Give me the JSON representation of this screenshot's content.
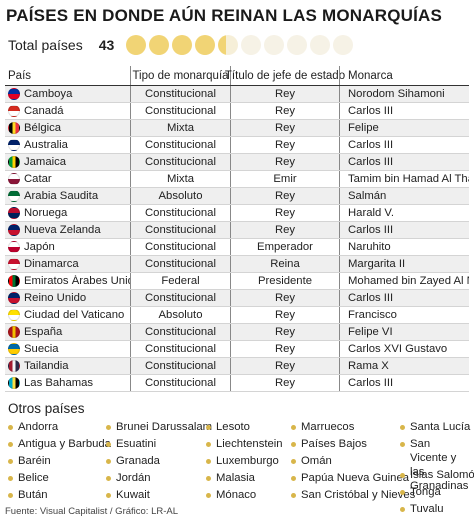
{
  "title": "PAÍSES EN DONDE AÚN REINAN LAS MONARQUÍAS",
  "total": {
    "label": "Total países",
    "value": "43",
    "coins_full": 4,
    "coins_partial": 1,
    "coins_faint": 5
  },
  "table": {
    "headers": {
      "country": "País",
      "type": "Tipo de monarquía",
      "head_title": "Título de jefe de estado",
      "monarch": "Monarca"
    },
    "rows": [
      {
        "country": "Camboya",
        "type": "Constitucional",
        "head_title": "Rey",
        "monarch": "Norodom Sihamoni",
        "flag": [
          "#032ea1",
          "#e00025"
        ]
      },
      {
        "country": "Canadá",
        "type": "Constitucional",
        "head_title": "Rey",
        "monarch": "Carlos III",
        "flag": [
          "#d52b1e",
          "#ffffff"
        ]
      },
      {
        "country": "Bélgica",
        "type": "Mixta",
        "head_title": "Rey",
        "monarch": "Felipe",
        "flag": [
          "#000000",
          "#fdda24",
          "#ef3340"
        ]
      },
      {
        "country": "Australia",
        "type": "Constitucional",
        "head_title": "Rey",
        "monarch": "Carlos III",
        "flag": [
          "#012169",
          "#ffffff"
        ]
      },
      {
        "country": "Jamaica",
        "type": "Constitucional",
        "head_title": "Rey",
        "monarch": "Carlos III",
        "flag": [
          "#009b3a",
          "#fed100",
          "#000000"
        ]
      },
      {
        "country": "Catar",
        "type": "Mixta",
        "head_title": "Emir",
        "monarch": "Tamim bin Hamad Al Thani",
        "flag": [
          "#ffffff",
          "#8a1538"
        ]
      },
      {
        "country": "Arabia Saudita",
        "type": "Absoluto",
        "head_title": "Rey",
        "monarch": "Salmán",
        "flag": [
          "#006c35",
          "#ffffff"
        ]
      },
      {
        "country": "Noruega",
        "type": "Constitucional",
        "head_title": "Rey",
        "monarch": "Harald V.",
        "flag": [
          "#ba0c2f",
          "#00205b"
        ]
      },
      {
        "country": "Nueva Zelanda",
        "type": "Constitucional",
        "head_title": "Rey",
        "monarch": "Carlos III",
        "flag": [
          "#012169",
          "#c8102e"
        ]
      },
      {
        "country": "Japón",
        "type": "Constitucional",
        "head_title": "Emperador",
        "monarch": "Naruhito",
        "flag": [
          "#ffffff",
          "#bc002d"
        ]
      },
      {
        "country": "Dinamarca",
        "type": "Constitucional",
        "head_title": "Reina",
        "monarch": "Margarita II",
        "flag": [
          "#c8102e",
          "#ffffff"
        ]
      },
      {
        "country": "Emiratos Árabes Unidos",
        "type": "Federal",
        "head_title": "Presidente",
        "monarch": "Mohamed bin Zayed Al Nahyan",
        "flag": [
          "#ff0000",
          "#00732f",
          "#000000"
        ]
      },
      {
        "country": "Reino Unido",
        "type": "Constitucional",
        "head_title": "Rey",
        "monarch": "Carlos III",
        "flag": [
          "#012169",
          "#c8102e"
        ]
      },
      {
        "country": "Ciudad del Vaticano",
        "type": "Absoluto",
        "head_title": "Rey",
        "monarch": "Francisco",
        "flag": [
          "#ffe000",
          "#ffffff"
        ]
      },
      {
        "country": "España",
        "type": "Constitucional",
        "head_title": "Rey",
        "monarch": "Felipe VI",
        "flag": [
          "#aa151b",
          "#f1bf00",
          "#aa151b"
        ]
      },
      {
        "country": "Suecia",
        "type": "Constitucional",
        "head_title": "Rey",
        "monarch": "Carlos XVI Gustavo",
        "flag": [
          "#006aa7",
          "#fecc00"
        ]
      },
      {
        "country": "Tailandia",
        "type": "Constitucional",
        "head_title": "Rey",
        "monarch": "Rama X",
        "flag": [
          "#a51931",
          "#f4f5f8",
          "#2d2a4a"
        ]
      },
      {
        "country": "Las Bahamas",
        "type": "Constitucional",
        "head_title": "Rey",
        "monarch": "Carlos III",
        "flag": [
          "#00abc9",
          "#fae042",
          "#000000"
        ]
      }
    ]
  },
  "others": {
    "title": "Otros países",
    "columns": [
      [
        "Andorra",
        "Antigua y Barbuda",
        "Baréin",
        "Belice",
        "Bután"
      ],
      [
        "Brunei Darussalam",
        "Esuatini",
        "Granada",
        "Jordán",
        "Kuwait"
      ],
      [
        "Lesoto",
        "Liechtenstein",
        "Luxemburgo",
        "Malasia",
        "Mónaco"
      ],
      [
        "Marruecos",
        "Países Bajos",
        "Omán",
        "Papúa Nueva Guinea",
        "San Cristóbal y Nieves"
      ],
      [
        "Santa Lucía",
        "San Vicente y las Granadinas",
        "Islas Salomón",
        "Tonga",
        "Tuvalu"
      ]
    ]
  },
  "source": "Fuente: Visual Capitalist / Gráfico: LR-AL",
  "colors": {
    "coin": "#f1d475",
    "coin_faint": "#f6f2e6",
    "bullet": "#d8b64a",
    "row_alt": "#efefef"
  }
}
